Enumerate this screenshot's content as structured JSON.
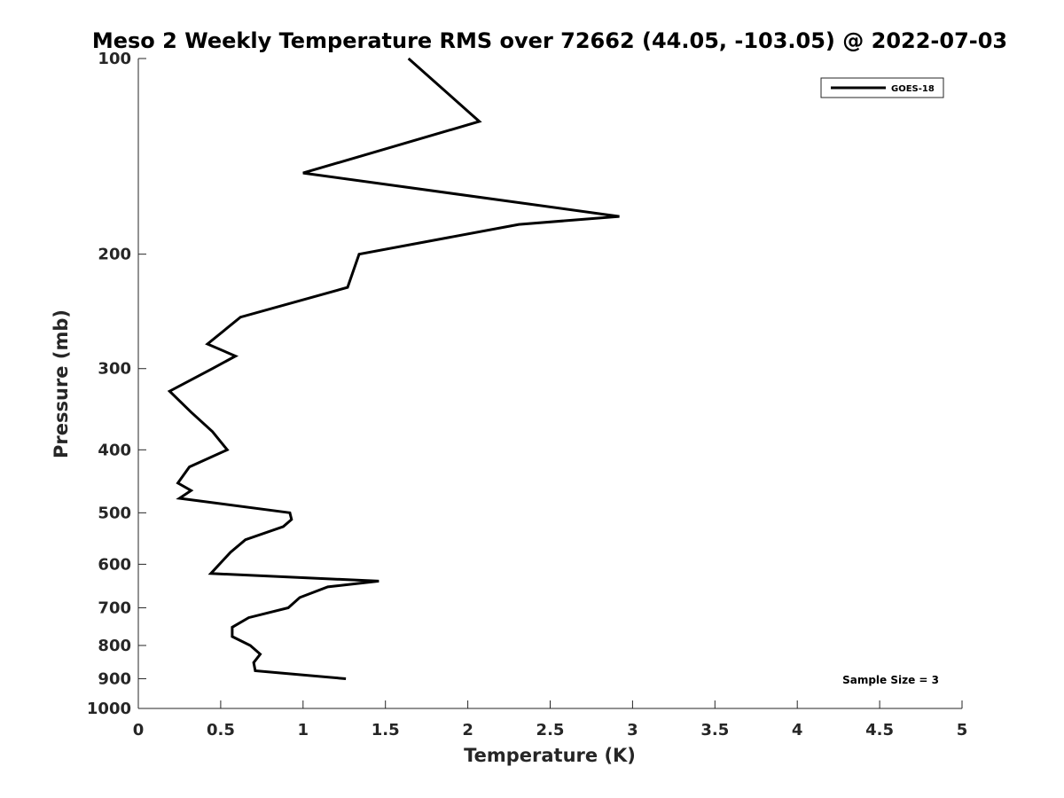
{
  "chart_data": {
    "type": "line",
    "title": "Meso 2 Weekly Temperature RMS over 72662 (44.05, -103.05) @ 2022-07-03",
    "xlabel": "Temperature (K)",
    "ylabel": "Pressure (mb)",
    "xlim": [
      0,
      5
    ],
    "ylim": [
      100,
      1000
    ],
    "yscale": "log",
    "yreversed": true,
    "grid": false,
    "legend_position": "top-right",
    "x_ticks": [
      0,
      0.5,
      1,
      1.5,
      2,
      2.5,
      3,
      3.5,
      4,
      4.5,
      5
    ],
    "x_tick_labels": [
      "0",
      "0.5",
      "1",
      "1.5",
      "2",
      "2.5",
      "3",
      "3.5",
      "4",
      "4.5",
      "5"
    ],
    "y_ticks": [
      100,
      200,
      300,
      400,
      500,
      600,
      700,
      800,
      900,
      1000
    ],
    "y_tick_labels": [
      "100",
      "200",
      "300",
      "400",
      "500",
      "600",
      "700",
      "800",
      "900",
      "1000"
    ],
    "series": [
      {
        "name": "GOES-18",
        "color": "#000000",
        "points": [
          {
            "x": 1.64,
            "p": 100
          },
          {
            "x": 2.07,
            "p": 125
          },
          {
            "x": 1.0,
            "p": 150
          },
          {
            "x": 2.92,
            "p": 175
          },
          {
            "x": 2.31,
            "p": 180
          },
          {
            "x": 1.34,
            "p": 200
          },
          {
            "x": 1.27,
            "p": 225
          },
          {
            "x": 0.62,
            "p": 250
          },
          {
            "x": 0.42,
            "p": 275
          },
          {
            "x": 0.59,
            "p": 287
          },
          {
            "x": 0.45,
            "p": 300
          },
          {
            "x": 0.19,
            "p": 325
          },
          {
            "x": 0.32,
            "p": 350
          },
          {
            "x": 0.45,
            "p": 375
          },
          {
            "x": 0.54,
            "p": 400
          },
          {
            "x": 0.31,
            "p": 425
          },
          {
            "x": 0.24,
            "p": 450
          },
          {
            "x": 0.32,
            "p": 462
          },
          {
            "x": 0.25,
            "p": 475
          },
          {
            "x": 0.92,
            "p": 500
          },
          {
            "x": 0.93,
            "p": 512
          },
          {
            "x": 0.88,
            "p": 525
          },
          {
            "x": 0.65,
            "p": 550
          },
          {
            "x": 0.56,
            "p": 575
          },
          {
            "x": 0.44,
            "p": 620
          },
          {
            "x": 1.46,
            "p": 637
          },
          {
            "x": 1.15,
            "p": 650
          },
          {
            "x": 0.98,
            "p": 675
          },
          {
            "x": 0.91,
            "p": 700
          },
          {
            "x": 0.67,
            "p": 725
          },
          {
            "x": 0.57,
            "p": 750
          },
          {
            "x": 0.57,
            "p": 775
          },
          {
            "x": 0.68,
            "p": 800
          },
          {
            "x": 0.74,
            "p": 825
          },
          {
            "x": 0.7,
            "p": 850
          },
          {
            "x": 0.71,
            "p": 875
          },
          {
            "x": 1.26,
            "p": 900
          }
        ]
      }
    ],
    "annotations": [
      "Sample Size = 3"
    ]
  }
}
